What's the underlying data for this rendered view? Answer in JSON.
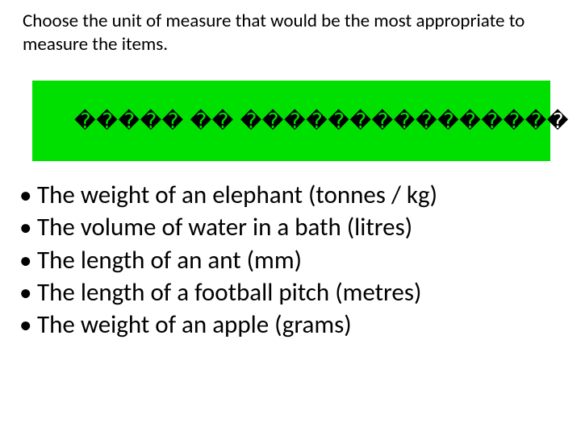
{
  "instruction": "Choose the unit of measure that would be the most appropriate to measure the items.",
  "green_box": {
    "text": "�����  �� ���������������",
    "background_color": "#00e000",
    "text_color": "#000000",
    "fontsize": 26
  },
  "bullets": [
    {
      "prefix": "The weight of an elephant  ",
      "answer": "(tonnes / kg)"
    },
    {
      "prefix": "The volume of water in a bath ",
      "answer": "(litres)"
    },
    {
      "prefix": "The length of an ant ",
      "answer": "(mm)"
    },
    {
      "prefix": "The length of a football pitch ",
      "answer": "(metres)"
    },
    {
      "prefix": "The weight of an apple ",
      "answer": "(grams)"
    }
  ],
  "colors": {
    "background": "#ffffff",
    "text": "#000000"
  },
  "typography": {
    "instruction_fontsize": 23,
    "bullet_fontsize": 31,
    "font_family": "Calibri, Arial, sans-serif"
  }
}
